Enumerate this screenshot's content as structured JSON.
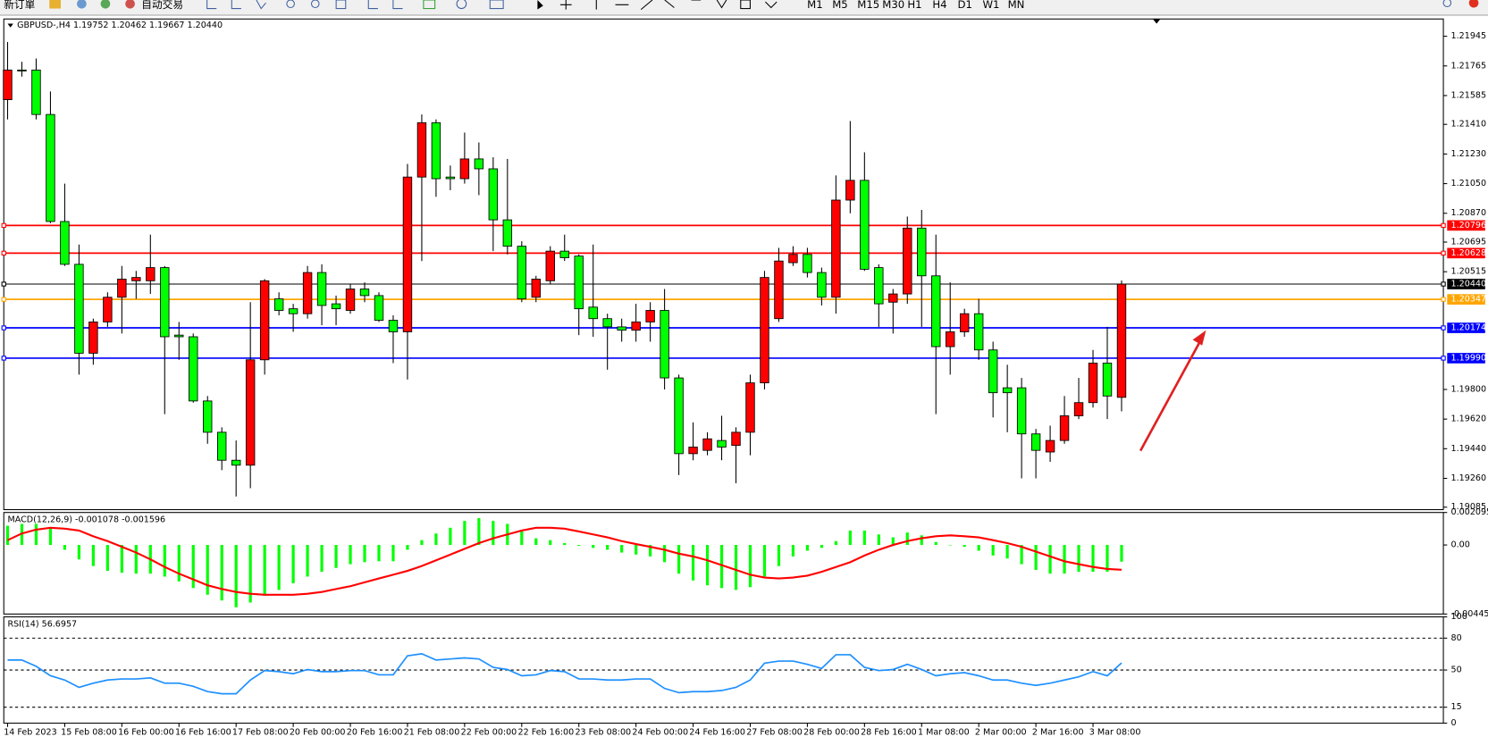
{
  "toolbar": {
    "buttons": [
      "新订單",
      "自动交易"
    ],
    "timeframes": [
      "M1",
      "M5",
      "M15",
      "M30",
      "H1",
      "H4",
      "D1",
      "W1",
      "MN"
    ]
  },
  "chart_data": [
    {
      "type": "candlestick",
      "title": "GBPUSD-,H4  1.19752 1.20462 1.19667 1.20440",
      "categories": [
        "14 Feb 2023",
        null,
        null,
        null,
        "15 Feb 08:00",
        null,
        null,
        null,
        "16 Feb 00:00",
        null,
        null,
        null,
        "16 Feb 16:00",
        null,
        null,
        null,
        "17 Feb 08:00",
        null,
        null,
        null,
        "20 Feb 00:00",
        null,
        null,
        null,
        "20 Feb 16:00",
        null,
        null,
        null,
        "21 Feb 08:00",
        null,
        null,
        null,
        "22 Feb 00:00",
        null,
        null,
        null,
        "22 Feb 16:00",
        null,
        null,
        null,
        "23 Feb 08:00",
        null,
        null,
        null,
        "24 Feb 00:00",
        null,
        null,
        null,
        "24 Feb 16:00",
        null,
        null,
        null,
        "27 Feb 08:00",
        null,
        null,
        null,
        "28 Feb 00:00",
        null,
        null,
        null,
        "28 Feb 16:00",
        null,
        null,
        null,
        "1 Mar 08:00",
        null,
        null,
        null,
        "2 Mar 00:00",
        null,
        null,
        null,
        "2 Mar 16:00",
        null,
        null,
        null,
        "3 Mar 08:00",
        null,
        null
      ],
      "open": [
        1.2156,
        1.2174,
        1.2174,
        1.2147,
        1.2082,
        1.2056,
        1.2002,
        1.2021,
        1.2036,
        1.2046,
        1.2046,
        1.2054,
        1.2013,
        1.2012,
        1.1973,
        1.1954,
        1.1937,
        1.1934,
        1.1998,
        1.2035,
        1.2029,
        1.2026,
        1.2051,
        1.2032,
        1.2028,
        1.2041,
        1.2037,
        1.2022,
        1.2015,
        1.2109,
        1.2142,
        1.2109,
        1.2108,
        1.212,
        1.2114,
        1.2083,
        1.2067,
        1.2036,
        1.2046,
        1.2064,
        1.2061,
        1.203,
        1.2023,
        1.2018,
        1.2016,
        1.2021,
        1.2028,
        1.1987,
        1.1941,
        1.1943,
        1.1949,
        1.1946,
        1.1954,
        1.1984,
        1.2023,
        1.2057,
        1.2062,
        1.2051,
        1.2036,
        1.2095,
        1.2107,
        1.2054,
        1.2033,
        1.2038,
        1.2078,
        1.2049,
        1.2006,
        1.2015,
        1.2026,
        1.2004,
        1.1981,
        1.1981,
        1.1953,
        1.1942,
        1.1949,
        1.1964,
        1.1972,
        1.1996,
        1.19752
      ],
      "high": [
        1.2191,
        1.2179,
        1.2181,
        1.2161,
        1.2105,
        1.2068,
        1.2023,
        1.2039,
        1.2055,
        1.2052,
        1.2074,
        1.2055,
        1.2021,
        1.2014,
        1.1976,
        1.1957,
        1.1949,
        1.2033,
        1.2047,
        1.2039,
        1.2032,
        1.2055,
        1.2056,
        1.2037,
        1.2044,
        1.2045,
        1.2039,
        1.2025,
        1.2117,
        1.2147,
        1.2144,
        1.2116,
        1.2136,
        1.213,
        1.2121,
        1.212,
        1.207,
        1.2049,
        1.2067,
        1.2074,
        1.2062,
        1.2068,
        1.2026,
        1.2023,
        1.2032,
        1.2033,
        1.2041,
        1.1989,
        1.196,
        1.1954,
        1.1964,
        1.1957,
        1.1989,
        1.2052,
        1.2066,
        1.2067,
        1.2066,
        1.2054,
        1.211,
        1.2143,
        1.2124,
        1.2056,
        1.2041,
        1.2085,
        1.2089,
        1.2074,
        1.2045,
        1.2029,
        1.2035,
        1.2009,
        1.1995,
        1.1987,
        1.1956,
        1.1958,
        1.1976,
        1.1987,
        1.2004,
        1.2018,
        1.20462
      ],
      "low": [
        1.2144,
        1.217,
        1.2144,
        1.2081,
        1.2055,
        1.1989,
        1.1995,
        1.2018,
        1.2014,
        1.2035,
        1.2038,
        1.1965,
        1.1998,
        1.1972,
        1.1947,
        1.1931,
        1.1915,
        1.192,
        1.1989,
        1.2025,
        1.2015,
        1.2023,
        1.2019,
        1.2019,
        1.2026,
        1.2033,
        1.2021,
        1.1996,
        1.1986,
        1.2058,
        1.2097,
        1.2101,
        1.2105,
        1.2098,
        1.2064,
        1.2062,
        1.2033,
        1.2033,
        1.2044,
        1.2058,
        1.2013,
        1.2012,
        1.1992,
        1.2009,
        1.2009,
        1.2009,
        1.198,
        1.1928,
        1.1937,
        1.194,
        1.1937,
        1.1923,
        1.194,
        1.198,
        1.2021,
        1.2055,
        1.2048,
        1.2031,
        1.2026,
        1.2087,
        1.2052,
        1.2018,
        1.2014,
        1.2032,
        1.2018,
        1.1965,
        1.1989,
        1.2012,
        1.1998,
        1.1963,
        1.1954,
        1.1926,
        1.1926,
        1.1936,
        1.1947,
        1.1962,
        1.1969,
        1.1962,
        1.19667
      ],
      "close": [
        1.2174,
        1.2174,
        1.2147,
        1.2082,
        1.2056,
        1.2002,
        1.2021,
        1.2036,
        1.2047,
        1.2048,
        1.2054,
        1.2012,
        1.2012,
        1.1973,
        1.1954,
        1.1937,
        1.1934,
        1.1998,
        1.2046,
        1.2028,
        1.2026,
        1.2051,
        1.2031,
        1.2029,
        1.2041,
        1.2037,
        1.2022,
        1.2015,
        1.2109,
        1.2142,
        1.2108,
        1.2108,
        1.212,
        1.2114,
        1.2083,
        1.2067,
        1.2035,
        1.2047,
        1.2064,
        1.206,
        1.2029,
        1.2023,
        1.2018,
        1.2016,
        1.2021,
        1.2028,
        1.1987,
        1.1941,
        1.1945,
        1.195,
        1.1945,
        1.1954,
        1.1984,
        1.2048,
        1.2058,
        1.2062,
        1.2051,
        1.2036,
        1.2095,
        1.2107,
        1.2053,
        1.2032,
        1.2038,
        1.2078,
        1.2049,
        1.2006,
        1.2015,
        1.2026,
        1.2004,
        1.1978,
        1.1978,
        1.1953,
        1.1943,
        1.1949,
        1.1964,
        1.1972,
        1.1996,
        1.1976,
        1.2044
      ],
      "colors": {
        "up": "#ff0000",
        "down": "#00ff00"
      },
      "ylim": [
        1.1907,
        1.2205
      ],
      "yticks": [
        1.21945,
        1.21765,
        1.21585,
        {
          "value": 1.2141,
          "label": "1.21410"
        },
        {
          "value": 1.2123,
          "label": "1.21230"
        },
        {
          "value": 1.2105,
          "label": "1.21050"
        },
        {
          "value": 1.2087,
          "label": "1.20870"
        },
        1.20695,
        1.20515,
        {
          "value": 1.198,
          "label": "1.19800"
        },
        {
          "value": 1.1962,
          "label": "1.19620"
        },
        {
          "value": 1.1944,
          "label": "1.19440"
        },
        {
          "value": 1.1926,
          "label": "1.19260"
        },
        1.19085
      ],
      "levels": {
        "values": [
          1.20796,
          1.20628,
          1.2044,
          1.20347,
          1.20174,
          1.1999
        ],
        "value_labels": [
          "1.20796",
          "1.20628",
          "1.20440",
          "1.20347",
          "1.20174",
          "1.19990"
        ],
        "colors": [
          "#ff0000",
          "#ff0000",
          "#000000",
          "#ffa500",
          "#0000ff",
          "#0000ff"
        ]
      }
    },
    {
      "type": "macd",
      "title": "MACD(12,26,9) -0.001078 -0.001596",
      "histogram": {
        "color": "#00ff00",
        "values": [
          0.00124,
          0.00136,
          0.00136,
          0.00105,
          -0.00031,
          -0.00093,
          -0.00136,
          -0.00167,
          -0.00179,
          -0.00185,
          -0.00185,
          -0.00204,
          -0.00235,
          -0.00278,
          -0.00321,
          -0.00358,
          -0.00402,
          -0.00371,
          -0.00328,
          -0.0029,
          -0.00247,
          -0.00204,
          -0.00173,
          -0.00148,
          -0.00124,
          -0.00111,
          -0.00105,
          -0.00105,
          -0.00031,
          0.00031,
          0.00074,
          0.00111,
          0.00155,
          0.00173,
          0.00155,
          0.00136,
          0.00087,
          0.00043,
          0.00031,
          0.00012,
          -6e-05,
          -0.00019,
          -0.00031,
          -0.00049,
          -0.00062,
          -0.00074,
          -0.00111,
          -0.00185,
          -0.00229,
          -0.0026,
          -0.00278,
          -0.0029,
          -0.00272,
          -0.00204,
          -0.00136,
          -0.00074,
          -0.00037,
          -0.00019,
          0.00025,
          0.00093,
          0.00093,
          0.00068,
          0.00049,
          0.0008,
          0.00062,
          0.00019,
          0,
          -0.00012,
          -0.00037,
          -0.00068,
          -0.00087,
          -0.00124,
          -0.00161,
          -0.00185,
          -0.00185,
          -0.00173,
          -0.00173,
          -0.00173,
          -0.001078
        ]
      },
      "signal": {
        "color": "#ff0000",
        "values": [
          0.00031,
          0.00074,
          0.00099,
          0.00111,
          0.00105,
          0.00093,
          0.00056,
          0.00025,
          -0.00012,
          -0.00049,
          -0.00093,
          -0.00142,
          -0.00185,
          -0.00222,
          -0.0026,
          -0.00284,
          -0.00303,
          -0.00315,
          -0.00321,
          -0.00321,
          -0.00321,
          -0.00315,
          -0.00303,
          -0.00284,
          -0.00266,
          -0.00241,
          -0.00216,
          -0.00192,
          -0.00167,
          -0.00136,
          -0.00099,
          -0.00062,
          -0.00025,
          0.00012,
          0.00043,
          0.00068,
          0.00093,
          0.00111,
          0.00111,
          0.00105,
          0.00087,
          0.00068,
          0.00049,
          0.00025,
          6e-05,
          -0.00012,
          -0.00031,
          -0.00056,
          -0.00074,
          -0.00099,
          -0.0013,
          -0.00161,
          -0.00192,
          -0.0021,
          -0.00216,
          -0.0021,
          -0.00198,
          -0.00173,
          -0.00142,
          -0.00111,
          -0.00068,
          -0.00031,
          0,
          0.00025,
          0.00043,
          0.00056,
          0.00062,
          0.00056,
          0.00049,
          0.00031,
          0.00012,
          -0.00012,
          -0.00043,
          -0.00074,
          -0.00105,
          -0.00124,
          -0.00142,
          -0.00155,
          -0.001596
        ]
      },
      "ylim": [
        -0.004455,
        0.002095
      ],
      "yticks": [
        0.002095,
        {
          "value": 0,
          "label": "0.00"
        },
        -0.004455
      ]
    },
    {
      "type": "rsi",
      "title": "RSI(14) 56.6957",
      "color": "#1e90ff",
      "values": [
        59.4,
        59.4,
        53.5,
        44.6,
        40.6,
        33.7,
        37.6,
        40.6,
        41.6,
        41.6,
        42.6,
        37.6,
        37.6,
        34.7,
        29.7,
        27.7,
        27.7,
        40.6,
        49.5,
        48.5,
        46.5,
        50.5,
        48.5,
        48.5,
        49.5,
        49.5,
        45.5,
        45.5,
        63.4,
        65.3,
        59.4,
        60.4,
        61.4,
        60.4,
        52.5,
        50.5,
        44.6,
        45.5,
        49.5,
        48.5,
        41.6,
        41.6,
        40.6,
        40.6,
        41.6,
        41.6,
        32.7,
        28.7,
        29.7,
        29.7,
        30.7,
        33.7,
        40.6,
        56.4,
        58.4,
        58.4,
        55.4,
        51.5,
        64.4,
        64.4,
        52.5,
        49.5,
        50.5,
        55.4,
        50.5,
        44.6,
        46.5,
        47.5,
        44.6,
        40.6,
        40.6,
        37.6,
        35.6,
        37.6,
        40.6,
        43.6,
        48.5,
        44.6,
        56.6957
      ],
      "ylim": [
        0,
        100
      ],
      "yticks": [
        0,
        15,
        50,
        80,
        100
      ],
      "levels": [
        15,
        50,
        80
      ]
    }
  ]
}
